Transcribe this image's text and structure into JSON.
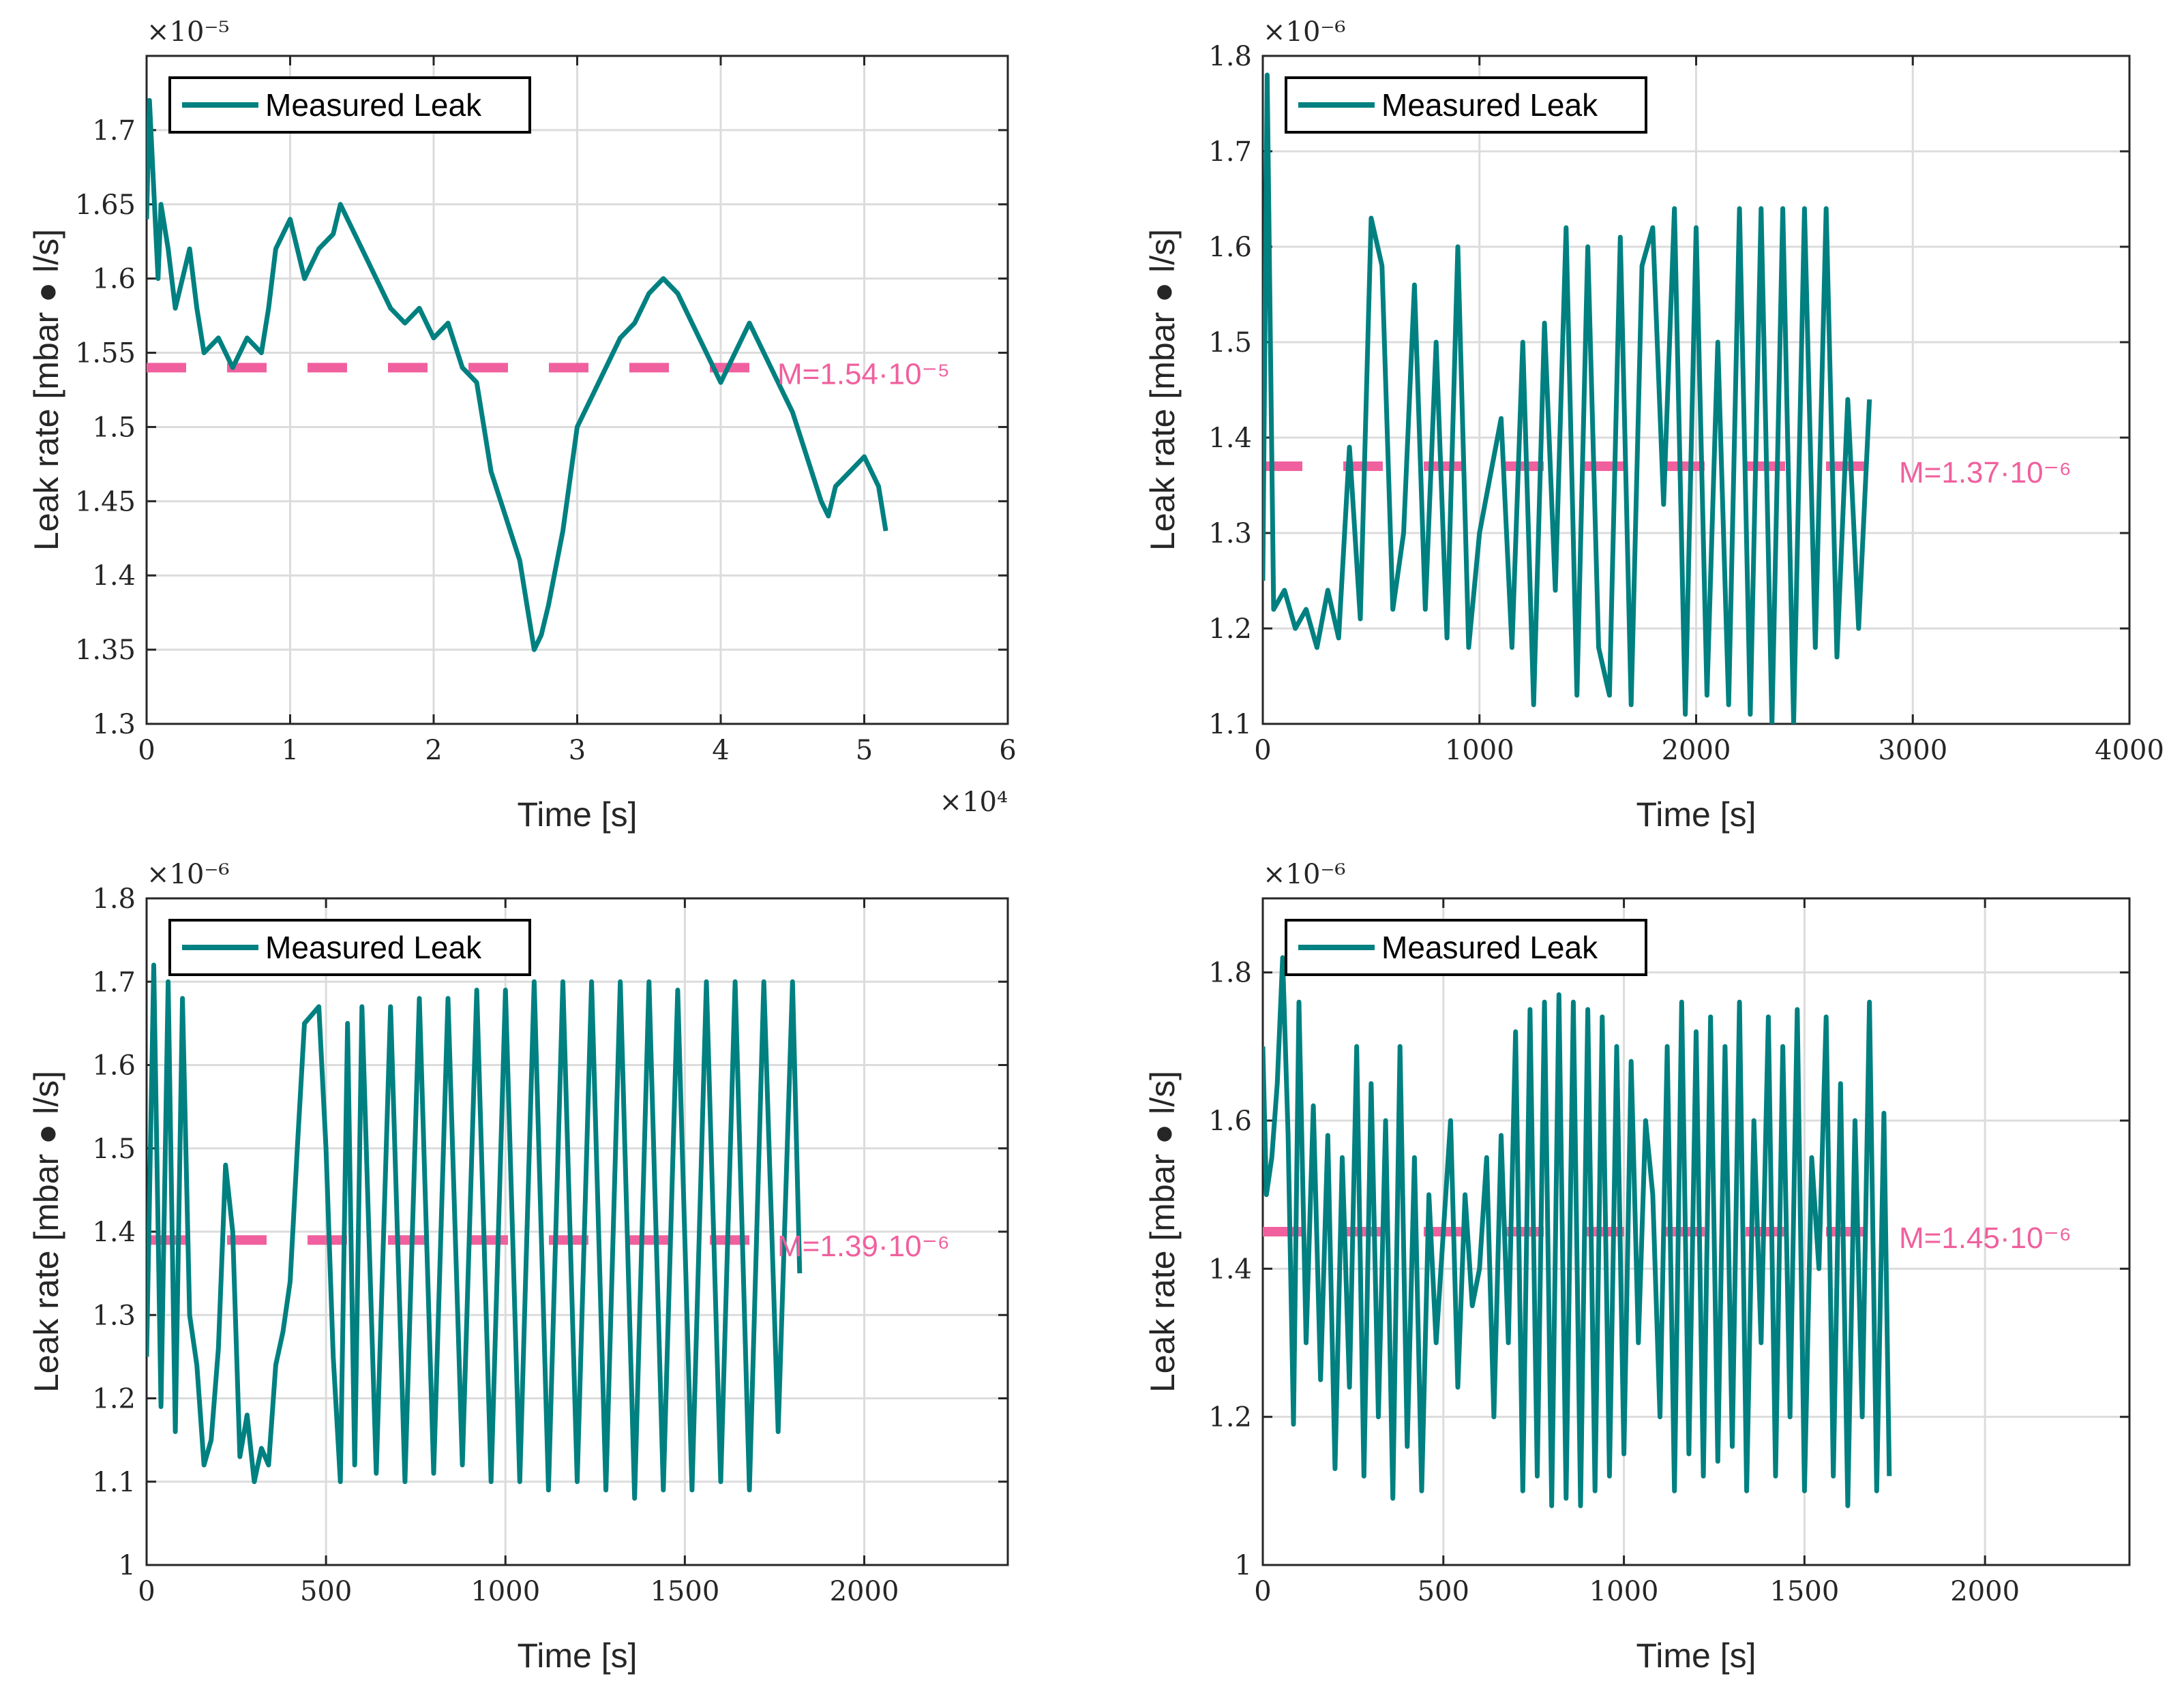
{
  "style": {
    "series_color": "#008080",
    "mean_color": "#f0609e",
    "grid_color": "#dcdcdc",
    "axis_color": "#262626"
  },
  "chart_data": [
    {
      "type": "line",
      "title": "",
      "xlabel": "Time [s]",
      "ylabel": "Leak rate [mbar ● l/s]",
      "xlim": [
        0,
        6
      ],
      "ylim": [
        1.3,
        1.75
      ],
      "xticks": [
        0,
        1,
        2,
        3,
        4,
        5,
        6
      ],
      "yticks": [
        1.3,
        1.35,
        1.4,
        1.45,
        1.5,
        1.55,
        1.6,
        1.65,
        1.7
      ],
      "x_exponent": "×10⁴",
      "y_exponent": "×10⁻⁵",
      "grid": true,
      "legend": {
        "position": "top-left",
        "entries": [
          "Measured Leak"
        ]
      },
      "series": [
        {
          "name": "Measured Leak",
          "x": [
            0,
            0.02,
            0.05,
            0.08,
            0.1,
            0.15,
            0.2,
            0.25,
            0.3,
            0.35,
            0.4,
            0.5,
            0.6,
            0.7,
            0.8,
            0.85,
            0.9,
            1.0,
            1.1,
            1.2,
            1.3,
            1.35,
            1.4,
            1.5,
            1.6,
            1.7,
            1.8,
            1.9,
            2.0,
            2.1,
            2.2,
            2.3,
            2.35,
            2.4,
            2.5,
            2.6,
            2.65,
            2.7,
            2.75,
            2.8,
            2.9,
            3.0,
            3.1,
            3.2,
            3.3,
            3.4,
            3.5,
            3.6,
            3.7,
            3.8,
            3.9,
            4.0,
            4.1,
            4.2,
            4.3,
            4.4,
            4.5,
            4.6,
            4.7,
            4.75,
            4.8,
            4.9,
            5.0,
            5.1,
            5.15
          ],
          "y": [
            1.64,
            1.72,
            1.66,
            1.6,
            1.65,
            1.62,
            1.58,
            1.6,
            1.62,
            1.58,
            1.55,
            1.56,
            1.54,
            1.56,
            1.55,
            1.58,
            1.62,
            1.64,
            1.6,
            1.62,
            1.63,
            1.65,
            1.64,
            1.62,
            1.6,
            1.58,
            1.57,
            1.58,
            1.56,
            1.57,
            1.54,
            1.53,
            1.5,
            1.47,
            1.44,
            1.41,
            1.38,
            1.35,
            1.36,
            1.38,
            1.43,
            1.5,
            1.52,
            1.54,
            1.56,
            1.57,
            1.59,
            1.6,
            1.59,
            1.57,
            1.55,
            1.53,
            1.55,
            1.57,
            1.55,
            1.53,
            1.51,
            1.48,
            1.45,
            1.44,
            1.46,
            1.47,
            1.48,
            1.46,
            1.43
          ]
        }
      ],
      "mean": {
        "value": 1.54,
        "label": "M=1.54·10⁻⁵",
        "x_start": 0,
        "x_end": 4.4
      }
    },
    {
      "type": "line",
      "title": "",
      "xlabel": "Time [s]",
      "ylabel": "Leak rate [mbar ● l/s]",
      "xlim": [
        0,
        4000
      ],
      "ylim": [
        1.1,
        1.8
      ],
      "xticks": [
        0,
        1000,
        2000,
        3000,
        4000
      ],
      "yticks": [
        1.1,
        1.2,
        1.3,
        1.4,
        1.5,
        1.6,
        1.7,
        1.8
      ],
      "y_exponent": "×10⁻⁶",
      "grid": true,
      "legend": {
        "position": "top-left",
        "entries": [
          "Measured Leak"
        ]
      },
      "series": [
        {
          "name": "Measured Leak",
          "x": [
            0,
            20,
            50,
            100,
            150,
            200,
            250,
            300,
            350,
            400,
            450,
            500,
            550,
            600,
            650,
            700,
            750,
            800,
            850,
            900,
            950,
            1000,
            1050,
            1100,
            1150,
            1200,
            1250,
            1300,
            1350,
            1400,
            1450,
            1500,
            1550,
            1600,
            1650,
            1700,
            1750,
            1800,
            1850,
            1900,
            1950,
            2000,
            2050,
            2100,
            2150,
            2200,
            2250,
            2300,
            2350,
            2400,
            2450,
            2500,
            2550,
            2600,
            2650,
            2700,
            2750,
            2800
          ],
          "y": [
            1.25,
            1.78,
            1.22,
            1.24,
            1.2,
            1.22,
            1.18,
            1.24,
            1.19,
            1.39,
            1.21,
            1.63,
            1.58,
            1.22,
            1.3,
            1.56,
            1.22,
            1.5,
            1.19,
            1.6,
            1.18,
            1.3,
            1.36,
            1.42,
            1.18,
            1.5,
            1.12,
            1.52,
            1.24,
            1.62,
            1.13,
            1.6,
            1.18,
            1.13,
            1.61,
            1.12,
            1.58,
            1.62,
            1.33,
            1.64,
            1.11,
            1.62,
            1.13,
            1.5,
            1.12,
            1.64,
            1.11,
            1.64,
            1.1,
            1.64,
            1.1,
            1.64,
            1.18,
            1.64,
            1.17,
            1.44,
            1.2,
            1.44
          ]
        }
      ],
      "mean": {
        "value": 1.37,
        "label": "M=1.37·10⁻⁶",
        "x_start": 0,
        "x_end": 2800
      }
    },
    {
      "type": "line",
      "title": "",
      "xlabel": "Time [s]",
      "ylabel": "Leak rate [mbar ● l/s]",
      "xlim": [
        0,
        2400
      ],
      "ylim": [
        1.0,
        1.8
      ],
      "xticks": [
        0,
        500,
        1000,
        1500,
        2000
      ],
      "yticks": [
        1.0,
        1.1,
        1.2,
        1.3,
        1.4,
        1.5,
        1.6,
        1.7,
        1.8
      ],
      "y_exponent": "×10⁻⁶",
      "grid": true,
      "legend": {
        "position": "top-left",
        "entries": [
          "Measured Leak"
        ]
      },
      "series": [
        {
          "name": "Measured Leak",
          "x": [
            0,
            20,
            40,
            60,
            80,
            100,
            120,
            140,
            160,
            180,
            200,
            220,
            240,
            260,
            280,
            300,
            320,
            340,
            360,
            380,
            400,
            420,
            440,
            460,
            480,
            500,
            520,
            540,
            560,
            580,
            600,
            640,
            680,
            720,
            760,
            800,
            840,
            880,
            920,
            960,
            1000,
            1040,
            1080,
            1120,
            1160,
            1200,
            1240,
            1280,
            1320,
            1360,
            1400,
            1440,
            1480,
            1520,
            1560,
            1600,
            1640,
            1680,
            1720,
            1760,
            1800,
            1820
          ],
          "y": [
            1.25,
            1.72,
            1.19,
            1.7,
            1.16,
            1.68,
            1.3,
            1.24,
            1.12,
            1.15,
            1.26,
            1.48,
            1.4,
            1.13,
            1.18,
            1.1,
            1.14,
            1.12,
            1.24,
            1.28,
            1.34,
            1.5,
            1.65,
            1.66,
            1.67,
            1.5,
            1.25,
            1.1,
            1.65,
            1.12,
            1.67,
            1.11,
            1.67,
            1.1,
            1.68,
            1.11,
            1.68,
            1.12,
            1.69,
            1.1,
            1.69,
            1.1,
            1.7,
            1.09,
            1.7,
            1.1,
            1.7,
            1.09,
            1.7,
            1.08,
            1.7,
            1.09,
            1.69,
            1.09,
            1.7,
            1.1,
            1.7,
            1.09,
            1.7,
            1.16,
            1.7,
            1.35
          ]
        }
      ],
      "mean": {
        "value": 1.39,
        "label": "M=1.39·10⁻⁶",
        "x_start": 0,
        "x_end": 1720
      }
    },
    {
      "type": "line",
      "title": "",
      "xlabel": "Time [s]",
      "ylabel": "Leak rate [mbar ● l/s]",
      "xlim": [
        0,
        2400
      ],
      "ylim": [
        1.0,
        1.9
      ],
      "xticks": [
        0,
        500,
        1000,
        1500,
        2000
      ],
      "yticks": [
        1.0,
        1.2,
        1.4,
        1.6,
        1.8
      ],
      "y_exponent": "×10⁻⁶",
      "grid": true,
      "legend": {
        "position": "top-left",
        "entries": [
          "Measured Leak"
        ]
      },
      "series": [
        {
          "name": "Measured Leak",
          "x": [
            0,
            10,
            25,
            40,
            55,
            70,
            85,
            100,
            120,
            140,
            160,
            180,
            200,
            220,
            240,
            260,
            280,
            300,
            320,
            340,
            360,
            380,
            400,
            420,
            440,
            460,
            480,
            500,
            520,
            540,
            560,
            580,
            600,
            620,
            640,
            660,
            680,
            700,
            720,
            740,
            760,
            780,
            800,
            820,
            840,
            860,
            880,
            900,
            920,
            940,
            960,
            980,
            1000,
            1020,
            1040,
            1060,
            1080,
            1100,
            1120,
            1140,
            1160,
            1180,
            1200,
            1220,
            1240,
            1260,
            1280,
            1300,
            1320,
            1340,
            1360,
            1380,
            1400,
            1420,
            1440,
            1460,
            1480,
            1500,
            1520,
            1540,
            1560,
            1580,
            1600,
            1620,
            1640,
            1660,
            1680,
            1700,
            1720,
            1735
          ],
          "y": [
            1.7,
            1.5,
            1.55,
            1.65,
            1.82,
            1.58,
            1.19,
            1.76,
            1.3,
            1.62,
            1.25,
            1.58,
            1.13,
            1.55,
            1.24,
            1.7,
            1.12,
            1.65,
            1.2,
            1.6,
            1.09,
            1.7,
            1.16,
            1.55,
            1.1,
            1.5,
            1.3,
            1.45,
            1.6,
            1.24,
            1.5,
            1.35,
            1.4,
            1.55,
            1.2,
            1.58,
            1.3,
            1.72,
            1.1,
            1.75,
            1.12,
            1.76,
            1.08,
            1.77,
            1.09,
            1.76,
            1.08,
            1.75,
            1.1,
            1.74,
            1.12,
            1.7,
            1.15,
            1.68,
            1.3,
            1.6,
            1.5,
            1.2,
            1.7,
            1.1,
            1.76,
            1.15,
            1.72,
            1.12,
            1.74,
            1.14,
            1.7,
            1.16,
            1.76,
            1.1,
            1.6,
            1.3,
            1.74,
            1.12,
            1.7,
            1.2,
            1.75,
            1.1,
            1.55,
            1.4,
            1.74,
            1.12,
            1.65,
            1.08,
            1.6,
            1.2,
            1.76,
            1.1,
            1.61,
            1.12
          ]
        }
      ],
      "mean": {
        "value": 1.45,
        "label": "M=1.45·10⁻⁶",
        "x_start": 0,
        "x_end": 1735
      }
    }
  ]
}
